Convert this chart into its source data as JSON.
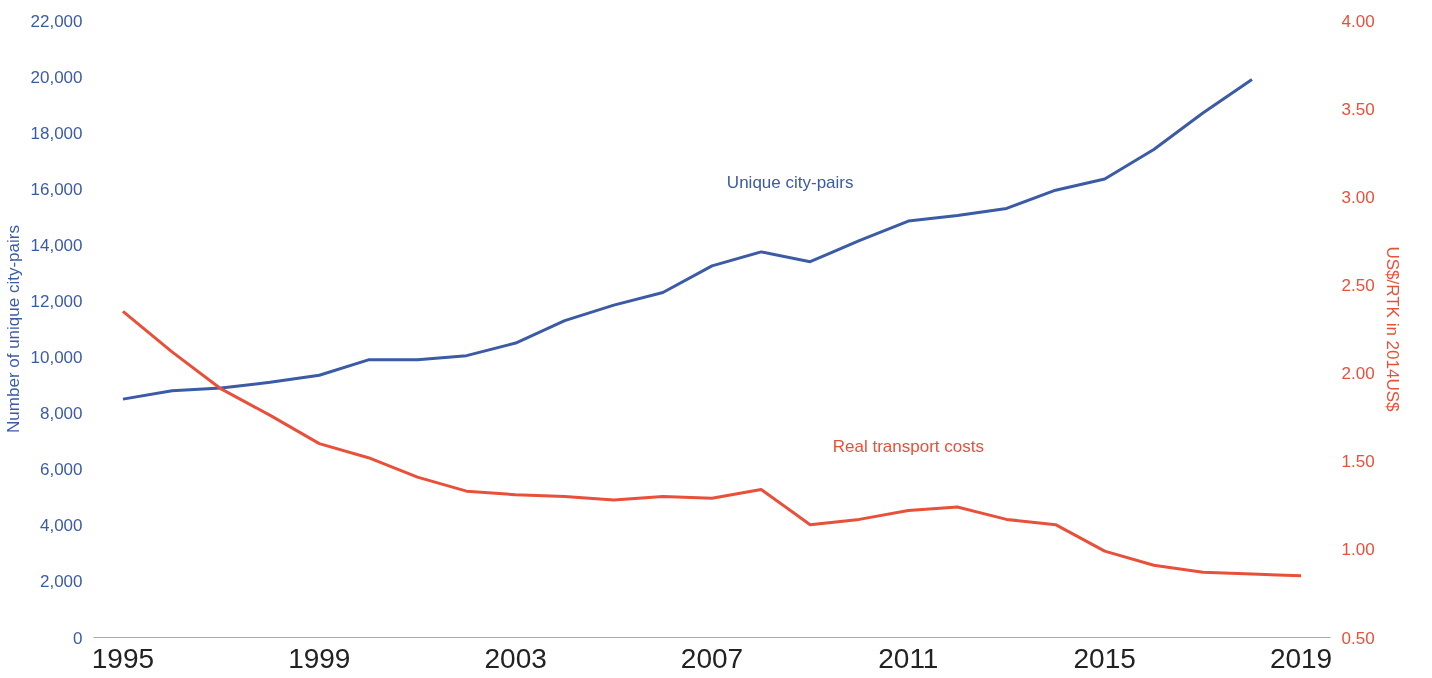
{
  "chart_data": {
    "type": "line",
    "ylabel": "Number of unique city-pairs",
    "y2label": "US$/RTK in 2014US$",
    "x": [
      1995,
      1996,
      1997,
      1998,
      1999,
      2000,
      2001,
      2002,
      2003,
      2004,
      2005,
      2006,
      2007,
      2008,
      2009,
      2010,
      2011,
      2012,
      2013,
      2014,
      2015,
      2016,
      2017,
      2018,
      2019
    ],
    "series": [
      {
        "name": "Unique city-pairs",
        "color": "#3b5ba5",
        "values": [
          8500,
          8800,
          8900,
          9100,
          9350,
          9900,
          9900,
          10050,
          10500,
          11300,
          11850,
          12300,
          13250,
          13750,
          13400,
          14150,
          14850,
          15050,
          15300,
          15950,
          16350,
          17400,
          18700,
          19900,
          null
        ]
      },
      {
        "name": "Real transport costs",
        "color": "#e8503a",
        "axis": "y2",
        "values": [
          2.35,
          2.12,
          1.91,
          1.76,
          1.6,
          1.52,
          1.41,
          1.33,
          1.31,
          1.3,
          1.28,
          1.3,
          1.29,
          1.34,
          1.14,
          1.17,
          1.22,
          1.24,
          1.17,
          1.14,
          0.99,
          0.91,
          0.87,
          0.86,
          0.85
        ]
      }
    ],
    "xlim": [
      1994.4,
      2019.6
    ],
    "xticks": [
      1995,
      1999,
      2003,
      2007,
      2011,
      2015,
      2019
    ],
    "ylim": [
      0,
      22000
    ],
    "yticks": [
      {
        "value": 0,
        "label": "0"
      },
      {
        "value": 2000,
        "label": "2,000"
      },
      {
        "value": 4000,
        "label": "4,000"
      },
      {
        "value": 6000,
        "label": "6,000"
      },
      {
        "value": 8000,
        "label": "8,000"
      },
      {
        "value": 10000,
        "label": "10,000"
      },
      {
        "value": 12000,
        "label": "12,000"
      },
      {
        "value": 14000,
        "label": "14,000"
      },
      {
        "value": 16000,
        "label": "16,000"
      },
      {
        "value": 18000,
        "label": "18,000"
      },
      {
        "value": 20000,
        "label": "20,000"
      },
      {
        "value": 22000,
        "label": "22,000"
      }
    ],
    "y2lim": [
      0.5,
      4.0
    ],
    "y2ticks": [
      {
        "value": 0.5,
        "label": "0.50"
      },
      {
        "value": 1.0,
        "label": "1.00"
      },
      {
        "value": 1.5,
        "label": "1.50"
      },
      {
        "value": 2.0,
        "label": "2.00"
      },
      {
        "value": 2.5,
        "label": "2.50"
      },
      {
        "value": 3.0,
        "label": "3.00"
      },
      {
        "value": 3.5,
        "label": "3.50"
      },
      {
        "value": 4.0,
        "label": "4.00"
      }
    ],
    "grid": false
  }
}
